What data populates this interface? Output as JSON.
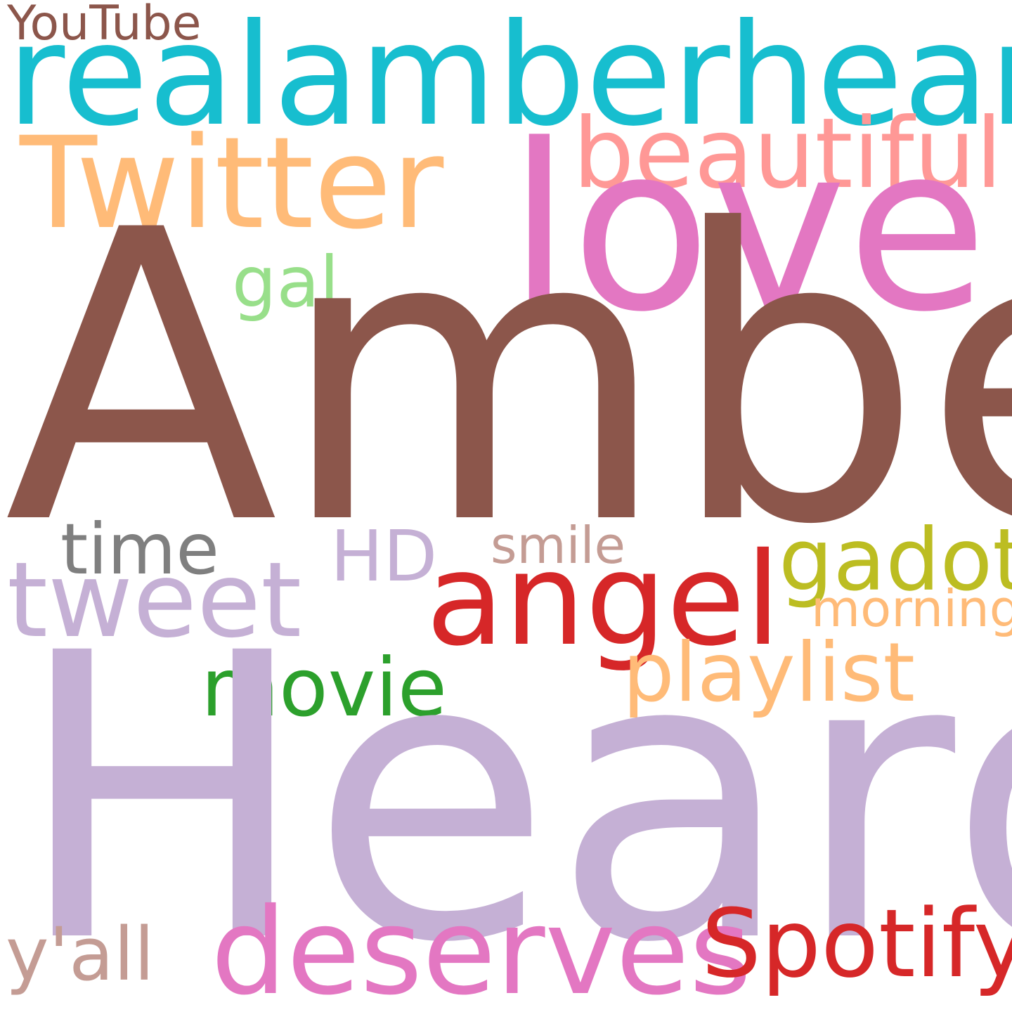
{
  "word_cloud": {
    "words": [
      {
        "id": "youtube",
        "text": "YouTube",
        "color": "#8c564b"
      },
      {
        "id": "realamber",
        "text": "realamberheard",
        "color": "#17becf"
      },
      {
        "id": "twitter",
        "text": "Twitter",
        "color": "#ffbb78"
      },
      {
        "id": "beautiful",
        "text": "beautiful",
        "color": "#ff9896"
      },
      {
        "id": "love",
        "text": "love",
        "color": "#e377c2"
      },
      {
        "id": "gal",
        "text": "gal",
        "color": "#98df8a"
      },
      {
        "id": "amber",
        "text": "Amber",
        "color": "#8c564b"
      },
      {
        "id": "time",
        "text": "time",
        "color": "#7f7f7f"
      },
      {
        "id": "hd",
        "text": "HD",
        "color": "#c5b0d5"
      },
      {
        "id": "smile",
        "text": "smile",
        "color": "#c49c94"
      },
      {
        "id": "gadot",
        "text": "gadot",
        "color": "#bcbd22"
      },
      {
        "id": "tweet",
        "text": "tweet",
        "color": "#c5b0d5"
      },
      {
        "id": "angel",
        "text": "angel",
        "color": "#d62728"
      },
      {
        "id": "morning",
        "text": "morning",
        "color": "#ffbb78"
      },
      {
        "id": "movie",
        "text": "movie",
        "color": "#2ca02c"
      },
      {
        "id": "playlist",
        "text": "playlist",
        "color": "#ffbb78"
      },
      {
        "id": "heard",
        "text": "Heard",
        "color": "#c5b0d5"
      },
      {
        "id": "yall",
        "text": "y'all",
        "color": "#c49c94"
      },
      {
        "id": "deserves",
        "text": "deserves",
        "color": "#e377c2"
      },
      {
        "id": "spotify",
        "text": "Spotify",
        "color": "#d62728"
      }
    ]
  }
}
